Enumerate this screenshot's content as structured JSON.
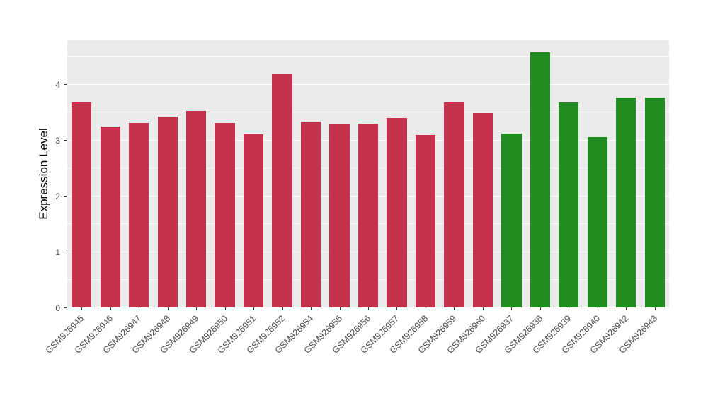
{
  "figure": {
    "background": "#ffffff",
    "panel_background": "#EBEBEB",
    "gridline_color": "#ffffff",
    "axis_text_color": "#4D4D4D",
    "tick_mark_color": "#333333"
  },
  "chart_data": {
    "type": "bar",
    "title": "",
    "xlabel": "",
    "ylabel": "Expression Level",
    "ylim": [
      0,
      4.79
    ],
    "yticks": [
      0,
      1,
      2,
      3,
      4
    ],
    "minor_gridlines": [
      0.5,
      1.5,
      2.5,
      3.5,
      4.5
    ],
    "grid": true,
    "legend_position": "none",
    "categories": [
      "GSM926945",
      "GSM926946",
      "GSM926947",
      "GSM926948",
      "GSM926949",
      "GSM926950",
      "GSM926951",
      "GSM926952",
      "GSM926954",
      "GSM926955",
      "GSM926956",
      "GSM926957",
      "GSM926958",
      "GSM926959",
      "GSM926960",
      "GSM926937",
      "GSM926938",
      "GSM926939",
      "GSM926940",
      "GSM926942",
      "GSM926943"
    ],
    "values": [
      3.67,
      3.25,
      3.31,
      3.42,
      3.52,
      3.31,
      3.11,
      4.19,
      3.33,
      3.28,
      3.29,
      3.39,
      3.09,
      3.68,
      3.49,
      3.12,
      4.57,
      3.67,
      3.06,
      3.76,
      3.77
    ],
    "colors": [
      "#C5324E",
      "#C5324E",
      "#C5324E",
      "#C5324E",
      "#C5324E",
      "#C5324E",
      "#C5324E",
      "#C5324E",
      "#C5324E",
      "#C5324E",
      "#C5324E",
      "#C5324E",
      "#C5324E",
      "#C5324E",
      "#C5324E",
      "#228B22",
      "#228B22",
      "#228B22",
      "#228B22",
      "#228B22",
      "#228B22"
    ],
    "group_colors": {
      "group_1": "#C5324E",
      "group_2": "#228B22"
    }
  }
}
